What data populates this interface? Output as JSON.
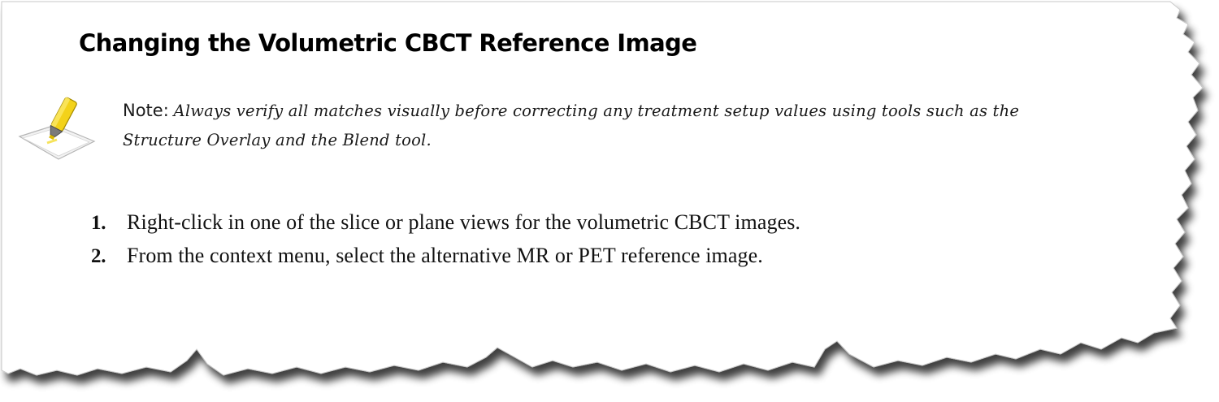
{
  "document": {
    "heading": "Changing the Volumetric CBCT Reference Image",
    "note": {
      "label": "Note:",
      "text": "Always verify all matches visually before correcting any treatment setup values using tools such as the Structure Overlay and the Blend tool.",
      "icon": "highlighter-note-icon"
    },
    "steps": [
      {
        "number": "1.",
        "text": "Right-click in one of the slice or plane views for the volumetric CBCT images."
      },
      {
        "number": "2.",
        "text": "From the context menu, select the alternative MR or PET reference image."
      }
    ]
  }
}
